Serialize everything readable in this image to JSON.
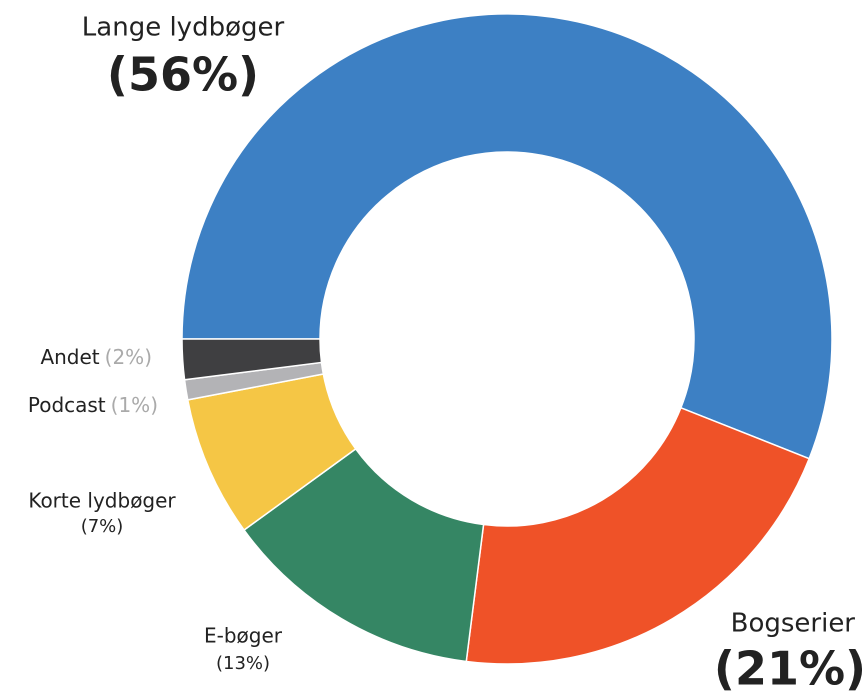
{
  "chart_data": {
    "type": "donut",
    "categories": [
      "Lange lydbøger",
      "Bogserier",
      "E-bøger",
      "Korte lydbøger",
      "Podcast",
      "Andet"
    ],
    "values": [
      56,
      21,
      13,
      7,
      1,
      2
    ],
    "value_labels": [
      "(56%)",
      "(21%)",
      "(13%)",
      "(7%)",
      "(1%)",
      "(2%)"
    ],
    "colors": [
      "#3d80c4",
      "#ef5228",
      "#358664",
      "#f5c645",
      "#b3b3b6",
      "#3f3f41"
    ]
  }
}
